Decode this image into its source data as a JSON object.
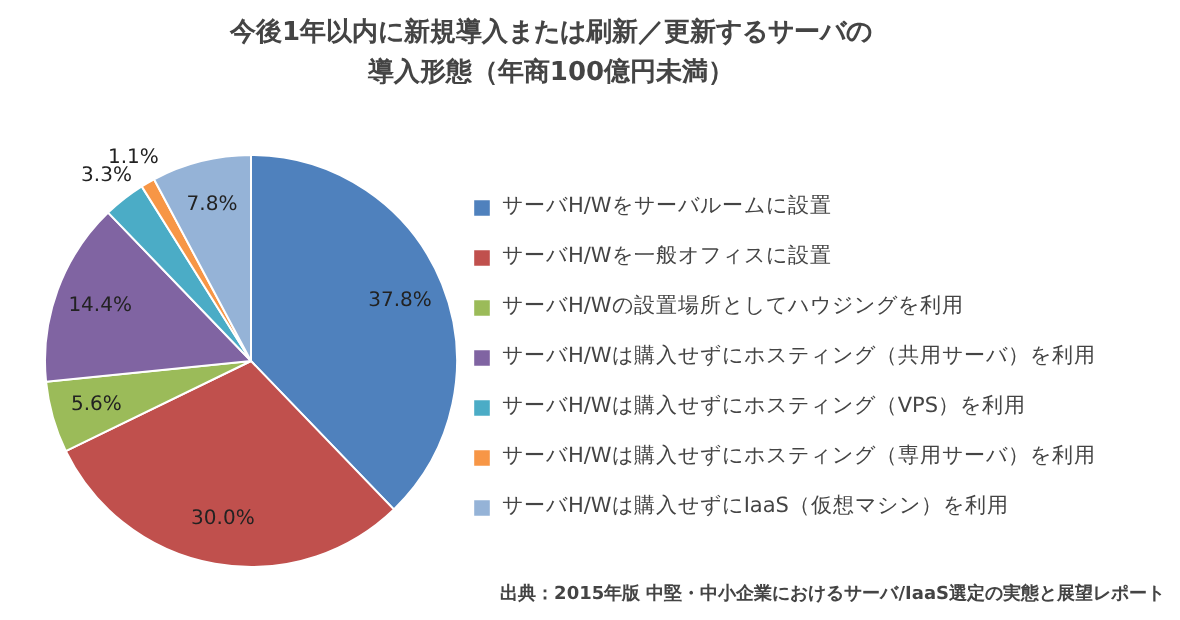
{
  "chart_data": {
    "type": "pie",
    "title": "今後1年以内に新規導入または刷新／更新するサーバの導入形態（年商100億円未満）",
    "categories": [
      "サーバH/Wをサーバルームに設置",
      "サーバH/Wを一般オフィスに設置",
      "サーバH/Wの設置場所としてハウジングを利用",
      "サーバH/Wは購入せずにホスティング（共用サーバ）を利用",
      "サーバH/Wは購入せずにホスティング（VPS）を利用",
      "サーバH/Wは購入せずにホスティング（専用サーバ）を利用",
      "サーバH/Wは購入せずにIaaS（仮想マシン）を利用"
    ],
    "values": [
      37.8,
      30.0,
      5.6,
      14.4,
      3.3,
      1.1,
      7.8
    ],
    "colors": [
      "#4f81bd",
      "#c0504d",
      "#9bbb59",
      "#8064a2",
      "#4bacc6",
      "#f79646",
      "#95b3d7"
    ],
    "value_labels": [
      "37.8%",
      "30.0%",
      "5.6%",
      "14.4%",
      "3.3%",
      "1.1%",
      "7.8%"
    ],
    "legend": "right",
    "annotations": [
      "出典：2015年版 中堅・中小企業におけるサーバ/IaaS選定の実態と展望レポート"
    ]
  }
}
